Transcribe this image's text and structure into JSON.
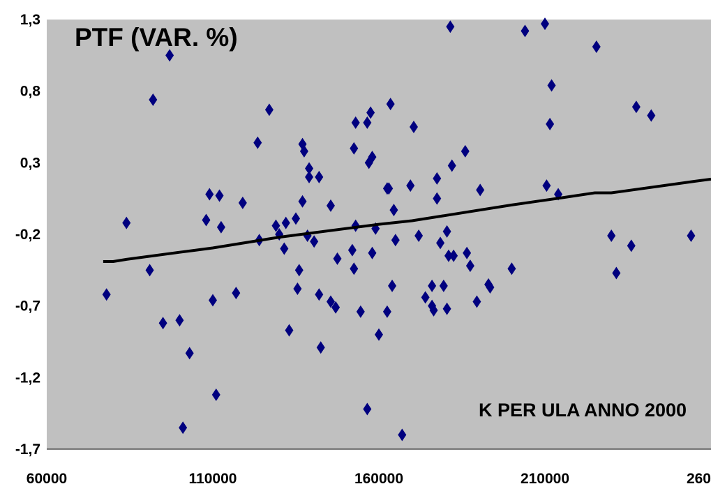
{
  "chart_data": {
    "type": "scatter",
    "title": "PTF (VAR. %)",
    "xlabel": "K PER ULA ANNO 2000",
    "ylabel": "",
    "xlim": [
      60000,
      260000
    ],
    "ylim": [
      -1.7,
      1.3
    ],
    "x_ticks": [
      60000,
      110000,
      160000,
      210000,
      260000
    ],
    "x_tick_labels": [
      "60000",
      "110000",
      "160000",
      "210000",
      "260000"
    ],
    "y_ticks": [
      1.3,
      0.8,
      0.3,
      -0.2,
      -0.7,
      -1.2,
      -1.7
    ],
    "y_tick_labels": [
      "1,3",
      "0,8",
      "0,3",
      "-0,2",
      "-0,7",
      "-1,2",
      "-1,7"
    ],
    "grid": false,
    "background_color": "#c0c0c0",
    "marker": "diamond",
    "marker_color": "#00007f",
    "series": [
      {
        "points": [
          [
            78000,
            -0.62
          ],
          [
            84000,
            -0.12
          ],
          [
            91000,
            -0.45
          ],
          [
            92000,
            0.74
          ],
          [
            95000,
            -0.82
          ],
          [
            97000,
            1.05
          ],
          [
            100000,
            -0.8
          ],
          [
            101000,
            -1.55
          ],
          [
            103000,
            -1.03
          ],
          [
            108000,
            -0.1
          ],
          [
            109000,
            0.08
          ],
          [
            110000,
            -0.66
          ],
          [
            111000,
            -1.32
          ],
          [
            112000,
            0.07
          ],
          [
            112500,
            -0.15
          ],
          [
            117000,
            -0.61
          ],
          [
            119000,
            0.02
          ],
          [
            123500,
            0.44
          ],
          [
            124000,
            -0.24
          ],
          [
            127000,
            0.67
          ],
          [
            129000,
            -0.14
          ],
          [
            130000,
            -0.2
          ],
          [
            131500,
            -0.3
          ],
          [
            133000,
            -0.87
          ],
          [
            132000,
            -0.12
          ],
          [
            135000,
            -0.09
          ],
          [
            135500,
            -0.58
          ],
          [
            136000,
            -0.45
          ],
          [
            137000,
            0.03
          ],
          [
            137500,
            0.38
          ],
          [
            137000,
            0.43
          ],
          [
            138500,
            -0.21
          ],
          [
            139000,
            0.2
          ],
          [
            139000,
            0.26
          ],
          [
            140500,
            -0.25
          ],
          [
            142000,
            -0.62
          ],
          [
            142000,
            0.2
          ],
          [
            142500,
            -0.99
          ],
          [
            145500,
            -0.67
          ],
          [
            145500,
            0.0
          ],
          [
            147000,
            -0.71
          ],
          [
            147500,
            -0.37
          ],
          [
            152000,
            -0.31
          ],
          [
            152500,
            -0.44
          ],
          [
            153000,
            -0.14
          ],
          [
            152500,
            0.4
          ],
          [
            153000,
            0.58
          ],
          [
            154500,
            -0.74
          ],
          [
            156500,
            -1.42
          ],
          [
            156500,
            0.58
          ],
          [
            157000,
            0.3
          ],
          [
            157500,
            0.65
          ],
          [
            158000,
            0.34
          ],
          [
            158000,
            -0.33
          ],
          [
            159000,
            -0.16
          ],
          [
            160000,
            -0.9
          ],
          [
            162500,
            -0.74
          ],
          [
            162500,
            0.12
          ],
          [
            163000,
            0.12
          ],
          [
            164000,
            -0.56
          ],
          [
            163500,
            0.71
          ],
          [
            165000,
            -0.24
          ],
          [
            164500,
            -0.03
          ],
          [
            167000,
            -1.6
          ],
          [
            169500,
            0.14
          ],
          [
            170500,
            0.55
          ],
          [
            172000,
            -0.21
          ],
          [
            174000,
            -0.64
          ],
          [
            176000,
            -0.56
          ],
          [
            176000,
            -0.7
          ],
          [
            176500,
            -0.73
          ],
          [
            177500,
            0.05
          ],
          [
            177500,
            0.19
          ],
          [
            178500,
            -0.26
          ],
          [
            179500,
            -0.56
          ],
          [
            180500,
            -0.72
          ],
          [
            180500,
            -0.18
          ],
          [
            181000,
            -0.35
          ],
          [
            181500,
            1.25
          ],
          [
            182000,
            0.28
          ],
          [
            182500,
            -0.35
          ],
          [
            186000,
            0.38
          ],
          [
            186500,
            -0.33
          ],
          [
            187500,
            -0.42
          ],
          [
            189500,
            -0.67
          ],
          [
            190500,
            0.11
          ],
          [
            193500,
            -0.57
          ],
          [
            193000,
            -0.55
          ],
          [
            200000,
            -0.44
          ],
          [
            204000,
            1.22
          ],
          [
            210500,
            0.14
          ],
          [
            211500,
            0.57
          ],
          [
            212000,
            0.84
          ],
          [
            214000,
            0.08
          ],
          [
            210000,
            1.27
          ],
          [
            225500,
            1.11
          ],
          [
            230000,
            -0.21
          ],
          [
            231500,
            -0.47
          ],
          [
            236000,
            -0.28
          ],
          [
            237500,
            0.69
          ],
          [
            242000,
            0.63
          ],
          [
            254000,
            -0.21
          ]
        ]
      }
    ],
    "trendline": {
      "type": "linear",
      "color": "#000000",
      "points": [
        [
          77000,
          -0.39
        ],
        [
          80000,
          -0.39
        ],
        [
          84000,
          -0.375
        ],
        [
          100000,
          -0.325
        ],
        [
          105000,
          -0.31
        ],
        [
          110000,
          -0.295
        ],
        [
          130000,
          -0.22
        ],
        [
          135000,
          -0.205
        ],
        [
          160000,
          -0.13
        ],
        [
          170000,
          -0.105
        ],
        [
          200000,
          0.005
        ],
        [
          215000,
          0.055
        ],
        [
          225000,
          0.09
        ],
        [
          230000,
          0.09
        ],
        [
          255000,
          0.17
        ],
        [
          260000,
          0.185
        ]
      ]
    }
  }
}
